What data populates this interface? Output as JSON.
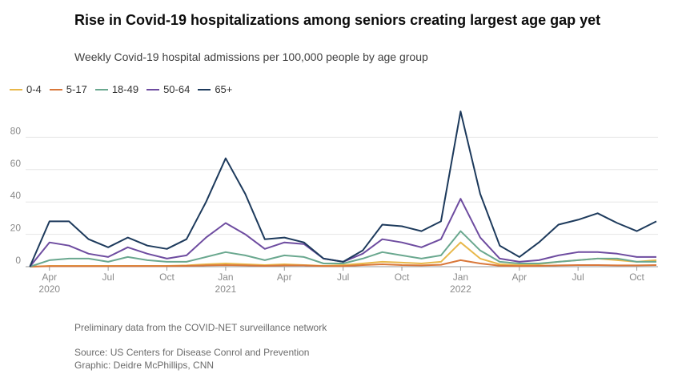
{
  "chart_data": {
    "type": "line",
    "title": "Rise in Covid-19 hospitalizations among seniors creating largest age gap yet",
    "subtitle": "Weekly Covid-19 hospital admissions per 100,000 people by age group",
    "x": [
      "2020-03",
      "2020-04",
      "2020-05",
      "2020-06",
      "2020-07",
      "2020-08",
      "2020-09",
      "2020-10",
      "2020-11",
      "2020-12",
      "2021-01",
      "2021-02",
      "2021-03",
      "2021-04",
      "2021-05",
      "2021-06",
      "2021-07",
      "2021-08",
      "2021-09",
      "2021-10",
      "2021-11",
      "2021-12",
      "2022-01",
      "2022-02",
      "2022-03",
      "2022-04",
      "2022-05",
      "2022-06",
      "2022-07",
      "2022-08",
      "2022-09",
      "2022-10",
      "2022-11"
    ],
    "series": [
      {
        "name": "0-4",
        "color": "#e8b84a",
        "values": [
          0,
          0.5,
          0.5,
          0.5,
          0.5,
          0.5,
          0.5,
          0.5,
          0.8,
          1.5,
          2,
          1.5,
          1,
          1.5,
          1,
          0.5,
          1,
          2,
          3,
          2.5,
          2,
          3,
          15,
          5,
          1.5,
          1,
          1.5,
          3,
          4,
          5,
          4,
          3,
          4
        ]
      },
      {
        "name": "5-17",
        "color": "#d9773a",
        "values": [
          0,
          0.3,
          0.3,
          0.3,
          0.3,
          0.4,
          0.4,
          0.4,
          0.5,
          0.8,
          1,
          0.8,
          0.5,
          0.8,
          0.8,
          0.4,
          0.4,
          1,
          1.5,
          1,
          0.8,
          1.2,
          4,
          2,
          0.6,
          0.4,
          0.5,
          0.8,
          1,
          1,
          0.8,
          0.8,
          1
        ]
      },
      {
        "name": "18-49",
        "color": "#6aa88f",
        "values": [
          0,
          4,
          5,
          5,
          3,
          6,
          4,
          3,
          3,
          6,
          9,
          7,
          4,
          7,
          6,
          2,
          2,
          5,
          9,
          7,
          5,
          7,
          22,
          10,
          3,
          2,
          2,
          3,
          4,
          5,
          5,
          3,
          3
        ]
      },
      {
        "name": "50-64",
        "color": "#6e4ca0",
        "values": [
          0,
          15,
          13,
          8,
          6,
          12,
          8,
          5,
          7,
          18,
          27,
          20,
          11,
          15,
          14,
          5,
          3,
          8,
          17,
          15,
          12,
          17,
          42,
          18,
          5,
          3,
          4,
          7,
          9,
          9,
          8,
          6,
          6
        ]
      },
      {
        "name": "65+",
        "color": "#1d3a5c",
        "values": [
          0,
          28,
          28,
          17,
          12,
          18,
          13,
          11,
          17,
          40,
          67,
          45,
          17,
          18,
          15,
          5,
          3,
          10,
          26,
          25,
          22,
          28,
          96,
          45,
          13,
          6,
          15,
          26,
          29,
          33,
          27,
          22,
          28
        ]
      }
    ],
    "xlim": [
      "2020-03",
      "2022-11"
    ],
    "xticks": [
      {
        "value": "2020-04",
        "label": "Apr 2020"
      },
      {
        "value": "2020-07",
        "label": "Jul"
      },
      {
        "value": "2020-10",
        "label": "Oct"
      },
      {
        "value": "2021-01",
        "label": "Jan 2021"
      },
      {
        "value": "2021-04",
        "label": "Apr"
      },
      {
        "value": "2021-07",
        "label": "Jul"
      },
      {
        "value": "2021-10",
        "label": "Oct"
      },
      {
        "value": "2022-01",
        "label": "Jan 2022"
      },
      {
        "value": "2022-04",
        "label": "Apr"
      },
      {
        "value": "2022-07",
        "label": "Jul"
      },
      {
        "value": "2022-10",
        "label": "Oct"
      }
    ],
    "ylim": [
      0,
      100
    ],
    "yticks": [
      0,
      20,
      40,
      60,
      80
    ],
    "grid": true,
    "legend": "top-left",
    "notes": [
      "Preliminary data from the COVID-NET surveillance network",
      "Source: US Centers for Disease Conrol and Prevention",
      "Graphic: Deidre McPhillips, CNN"
    ]
  }
}
